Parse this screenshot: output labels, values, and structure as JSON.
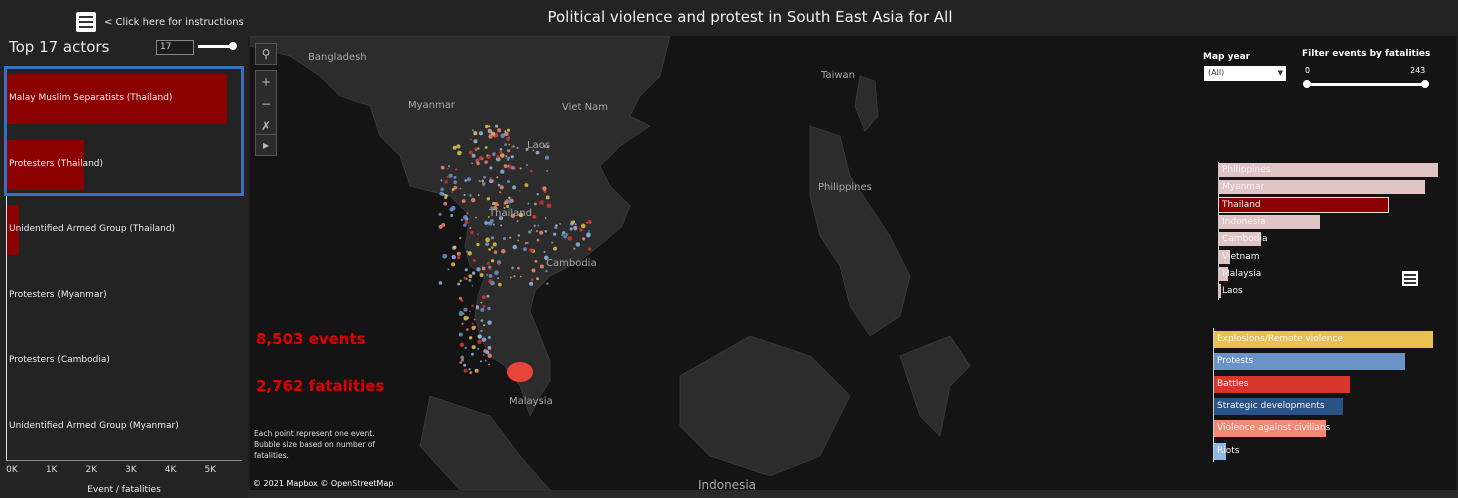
{
  "header": {
    "menu_icon": "hamburger-menu-icon",
    "instructions_link": "< Click here for instructions",
    "title": "Political violence and protest in South East Asia for All"
  },
  "actors_panel": {
    "title": "Top 17 actors",
    "top_n_value": "17",
    "top_n_slider_fraction": 1.0,
    "actors": [
      {
        "name": "Malay Muslim Separatists (Thailand)",
        "value": 5550,
        "selected": true
      },
      {
        "name": "Protesters (Thailand)",
        "value": 1950,
        "selected": true
      },
      {
        "name": "Unidentified Armed Group (Thailand)",
        "value": 300,
        "selected": false
      },
      {
        "name": "Protesters (Myanmar)",
        "value": 0,
        "selected": false
      },
      {
        "name": "Protesters (Cambodia)",
        "value": 0,
        "selected": false
      },
      {
        "name": "Unidentified Armed Group (Myanmar)",
        "value": 0,
        "selected": false
      }
    ],
    "x_ticks": [
      "0K",
      "1K",
      "2K",
      "3K",
      "4K",
      "5K"
    ],
    "x_max": 5800,
    "x_axis_title": "Event / fatalities",
    "bar_color": "#8b0000",
    "selection_color": "#3a6ec0"
  },
  "map": {
    "labels": [
      "Bangladesh",
      "Taiwan",
      "Myanmar",
      "Viet Nam",
      "Laos",
      "Philippines",
      "Thailand",
      "Cambodia",
      "Malaysia",
      "Indonesia"
    ],
    "controls": {
      "search_icon": "search-icon",
      "zoom_in": "+",
      "zoom_out": "−",
      "pin_icon": "pin-reset-icon",
      "play_icon": "play-icon"
    },
    "events_count": "8,503 events",
    "fatalities_count": "2,762 fatalities",
    "note": "Each point represent one event. Bubble size based on number of fatalities.",
    "attribution": "© 2021 Mapbox © OpenStreetMap"
  },
  "filters": {
    "map_year_label": "Map year",
    "map_year_value": "(All)",
    "fatalities_label": "Filter events by fatalities",
    "fatalities_min": "0",
    "fatalities_max": "243"
  },
  "countries": {
    "items": [
      {
        "name": "Philippines",
        "value": 1.0,
        "selected": false
      },
      {
        "name": "Myanmar",
        "value": 0.94,
        "selected": false
      },
      {
        "name": "Thailand",
        "value": 0.77,
        "selected": true
      },
      {
        "name": "Indonesia",
        "value": 0.46,
        "selected": false
      },
      {
        "name": "Cambodia",
        "value": 0.19,
        "selected": false
      },
      {
        "name": "Vietnam",
        "value": 0.05,
        "selected": false
      },
      {
        "name": "Malaysia",
        "value": 0.04,
        "selected": false
      },
      {
        "name": "Laos",
        "value": 0.01,
        "selected": false
      }
    ],
    "bar_color": "#e0c3c5",
    "selected_color": "#8b0000",
    "list_icon": "list-icon"
  },
  "event_types": {
    "items": [
      {
        "name": "Explosions/Remote violence",
        "value": 1.0,
        "color": "#e8c14e"
      },
      {
        "name": "Protests",
        "value": 0.87,
        "color": "#6b93c7"
      },
      {
        "name": "Battles",
        "value": 0.62,
        "color": "#d6362c"
      },
      {
        "name": "Strategic developments",
        "value": 0.59,
        "color": "#2b5486"
      },
      {
        "name": "Violence against civilians",
        "value": 0.51,
        "color": "#f08a73"
      },
      {
        "name": "Riots",
        "value": 0.05,
        "color": "#8fb7e3"
      }
    ]
  }
}
